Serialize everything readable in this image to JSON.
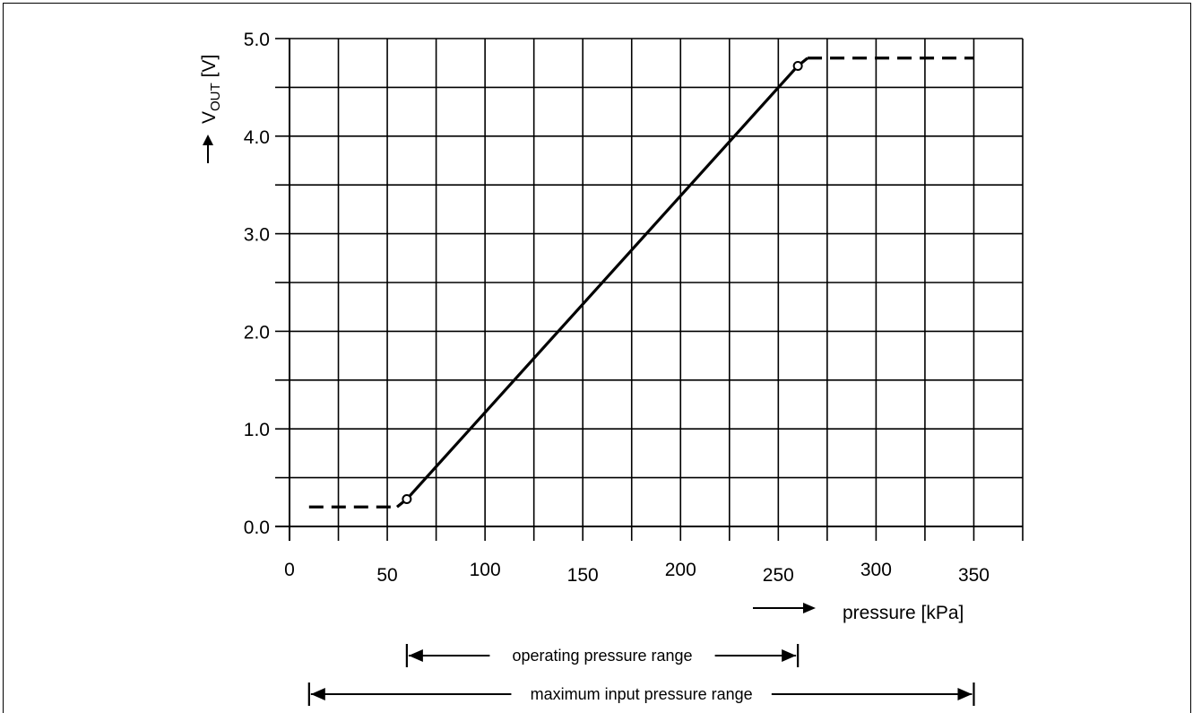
{
  "chart_data": {
    "type": "line",
    "title": "",
    "xlabel": "pressure  [kPa]",
    "ylabel_main": "V",
    "ylabel_sub": "OUT",
    "ylabel_unit": "[V]",
    "xlim": [
      0,
      375
    ],
    "ylim": [
      0,
      5.0
    ],
    "x_ticks": [
      0,
      50,
      100,
      150,
      200,
      250,
      300,
      350
    ],
    "x_tick_labels": [
      "0",
      "50",
      "100",
      "150",
      "200",
      "250",
      "300",
      "350"
    ],
    "y_ticks": [
      0,
      1,
      2,
      3,
      4,
      5
    ],
    "y_tick_labels": [
      "0.0",
      "1.0",
      "2.0",
      "3.0",
      "4.0",
      "5.0"
    ],
    "grid": true,
    "series": [
      {
        "style": "dashed",
        "x": [
          10,
          55
        ],
        "y": [
          0.2,
          0.2
        ]
      },
      {
        "style": "solid",
        "x": [
          55,
          60,
          260,
          265
        ],
        "y": [
          0.2,
          0.28,
          4.72,
          4.8
        ]
      },
      {
        "style": "dashed",
        "x": [
          265,
          350
        ],
        "y": [
          4.8,
          4.8
        ]
      }
    ],
    "markers": [
      {
        "x": 60,
        "y": 0.28
      },
      {
        "x": 260,
        "y": 4.72
      }
    ],
    "ranges": [
      {
        "label": "operating pressure range",
        "start": 60,
        "end": 260
      },
      {
        "label": "maximum input pressure range",
        "start": 10,
        "end": 350
      }
    ]
  }
}
